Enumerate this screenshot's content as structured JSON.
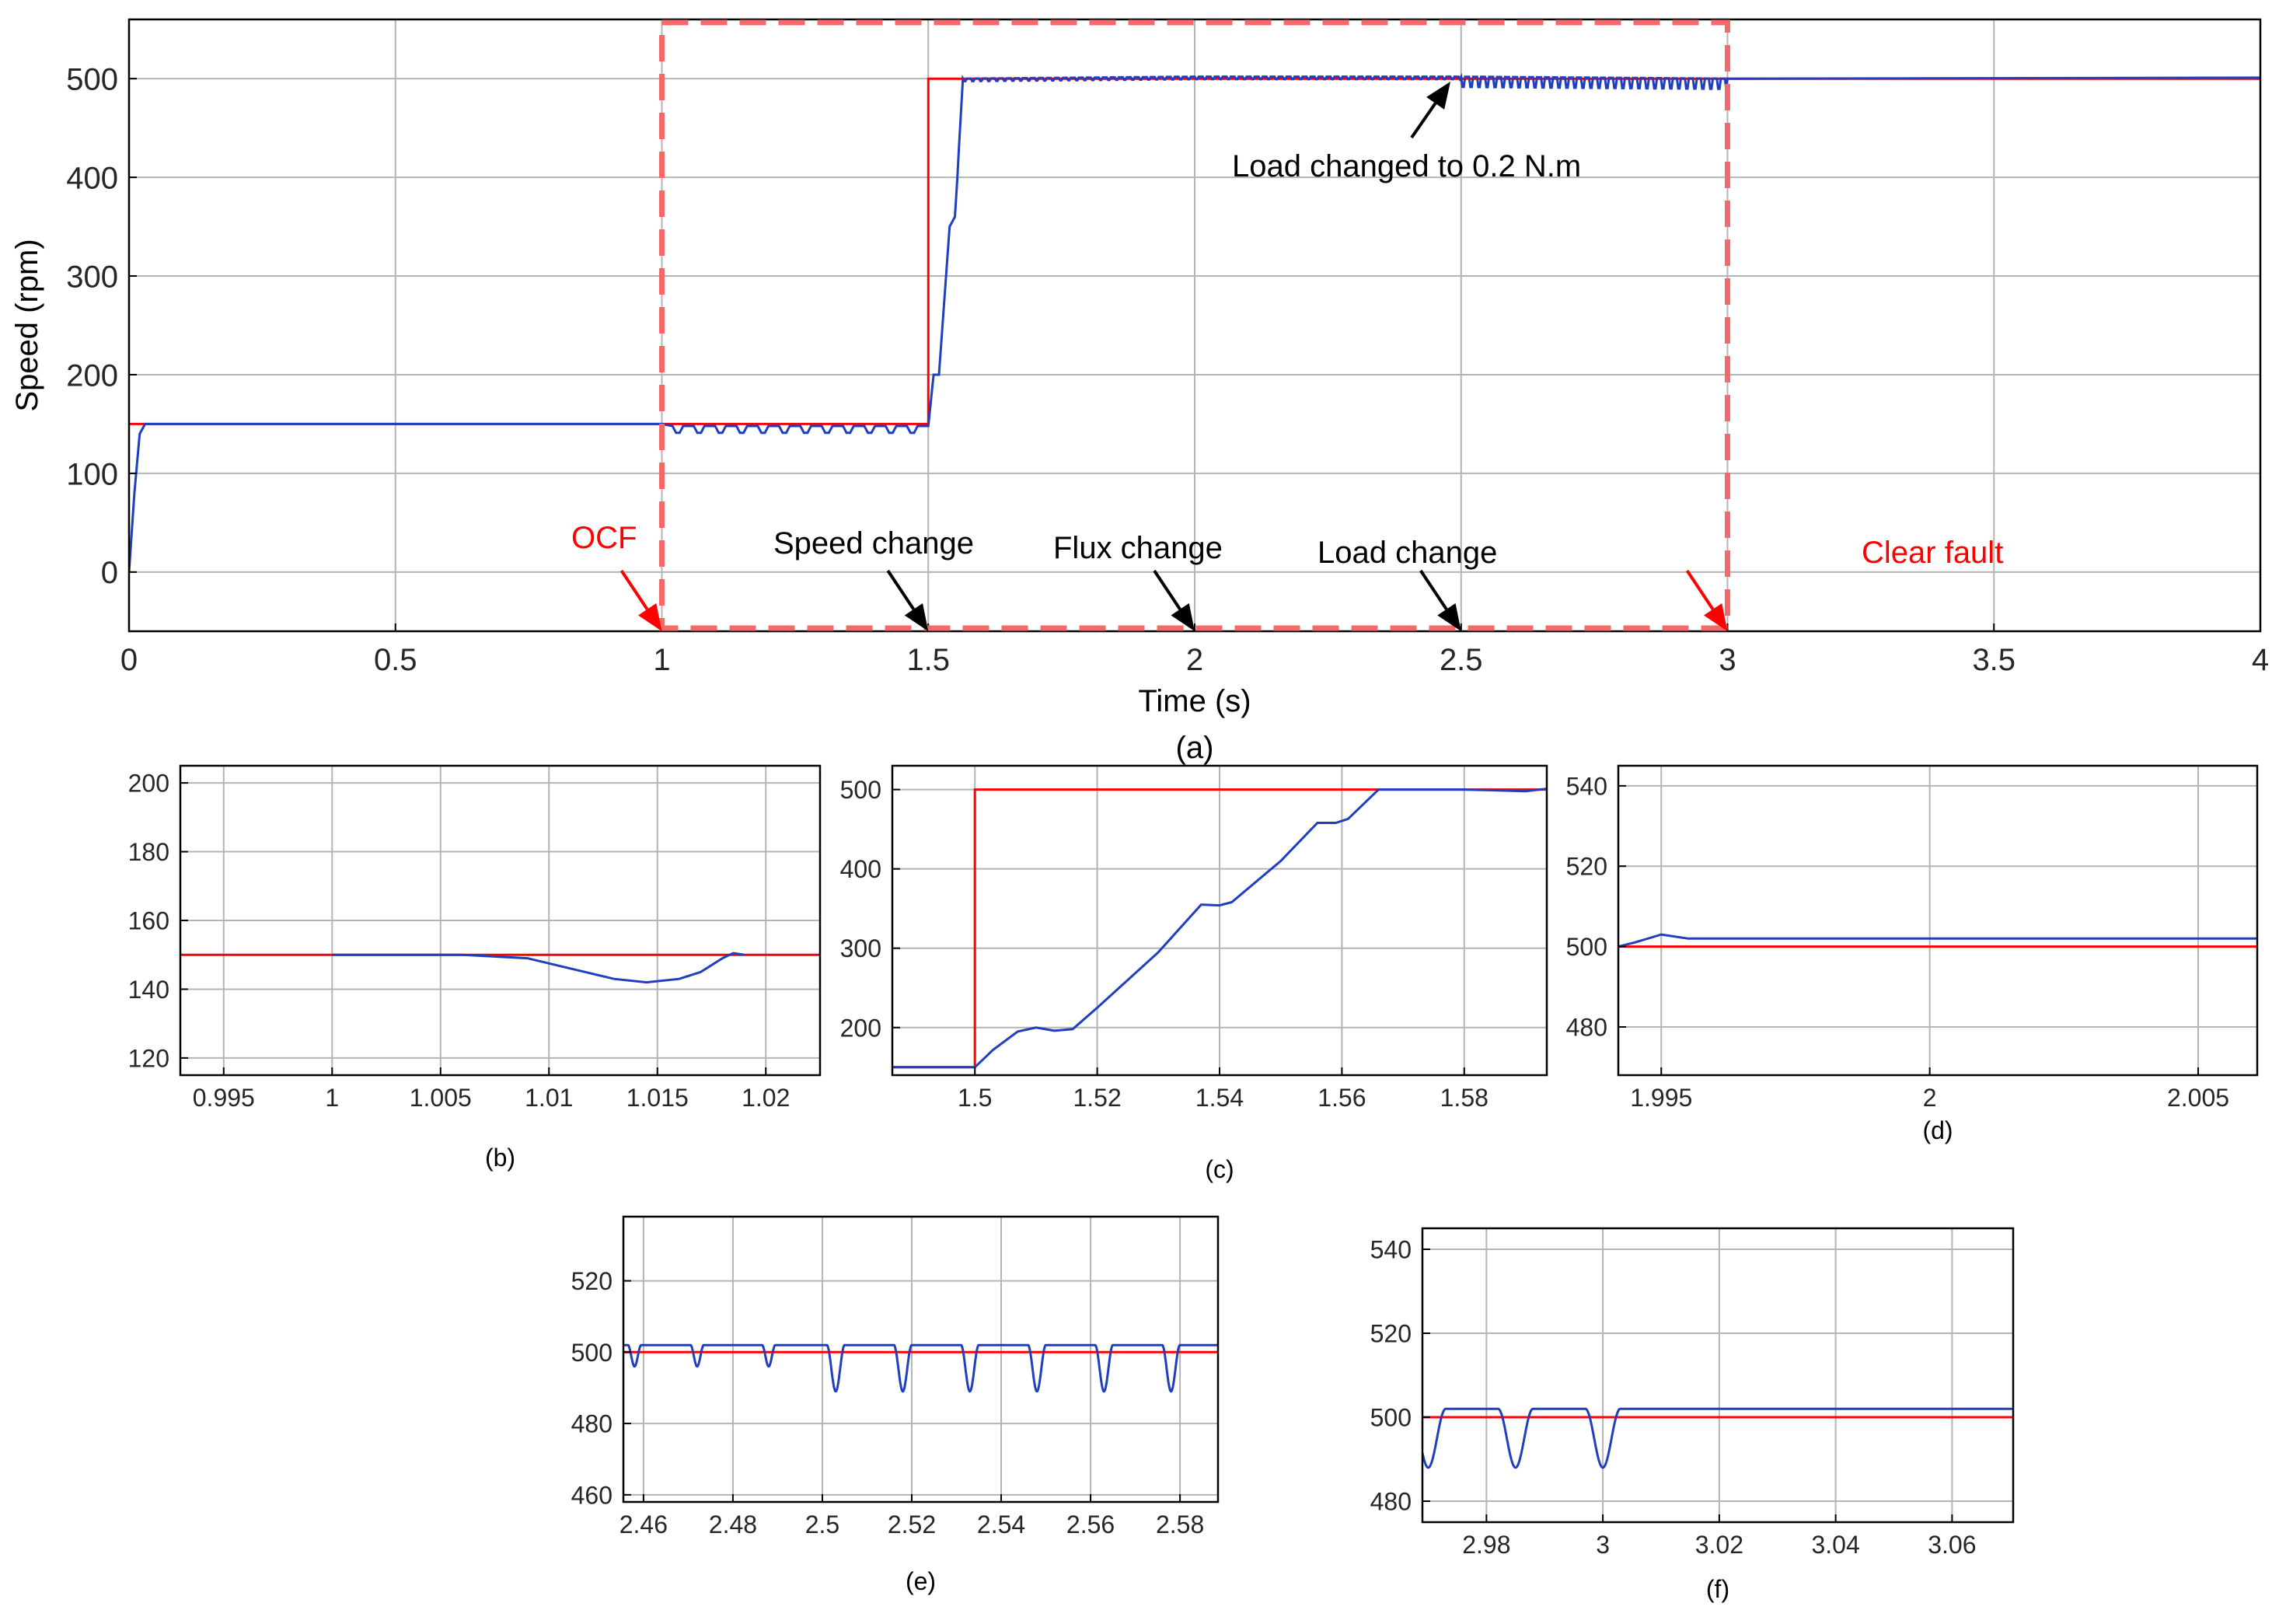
{
  "colors": {
    "reference": "#ff0000",
    "measured": "#1f3fbf",
    "grid": "#b4b4b4",
    "axes": "#000000",
    "fault_box": "#f46a6a",
    "annotation_red": "#ff0000",
    "annotation_black": "#000000"
  },
  "chart_data": [
    {
      "id": "a",
      "type": "line",
      "caption": "(a)",
      "xlabel": "Time (s)",
      "ylabel": "Speed (rpm)",
      "xlim": [
        0,
        4
      ],
      "ylim": [
        -60,
        560
      ],
      "xticks": [
        0,
        0.5,
        1,
        1.5,
        2,
        2.5,
        3,
        3.5,
        4
      ],
      "xtick_labels": [
        "0",
        "0.5",
        "1",
        "1.5",
        "2",
        "2.5",
        "3",
        "3.5",
        "4"
      ],
      "yticks": [
        0,
        100,
        200,
        300,
        400,
        500
      ],
      "ytick_labels": [
        "0",
        "100",
        "200",
        "300",
        "400",
        "500"
      ],
      "grid": true,
      "series": [
        {
          "color": "#ff0000",
          "x": [
            0,
            1.5,
            1.5,
            4
          ],
          "y": [
            150,
            150,
            500,
            500
          ]
        },
        {
          "color": "#1f3fbf",
          "x": [
            0,
            0.01,
            0.02,
            0.03,
            1.0,
            1.02,
            1.5,
            1.51,
            1.52,
            1.54,
            1.55,
            1.565,
            2.0,
            2.5,
            3.0,
            4.0
          ],
          "y": [
            0,
            80,
            140,
            150,
            150,
            148,
            148,
            200,
            200,
            350,
            360,
            500,
            502,
            502,
            500,
            501
          ],
          "oscillations": [
            {
              "x_from": 1.02,
              "x_to": 1.5,
              "period": 0.04,
              "depth": 8
            },
            {
              "x_from": 1.55,
              "x_to": 2.5,
              "period": 0.015,
              "depth": 3
            },
            {
              "x_from": 2.5,
              "x_to": 3.0,
              "period": 0.015,
              "depth": 12
            }
          ]
        }
      ],
      "fault_box": {
        "x_from": 1,
        "x_to": 3
      },
      "annotations": [
        {
          "text": "OCF",
          "color": "#ff0000",
          "arrow_to": [
            1,
            -60
          ]
        },
        {
          "text": "Speed change",
          "color": "#000000",
          "arrow_to": [
            1.5,
            -60
          ]
        },
        {
          "text": "Flux change",
          "color": "#000000",
          "arrow_to": [
            2,
            -60
          ]
        },
        {
          "text": "Load change",
          "color": "#000000",
          "arrow_to": [
            2.5,
            -60
          ]
        },
        {
          "text": "Clear fault",
          "color": "#ff0000",
          "arrow_to": [
            3,
            -60
          ]
        },
        {
          "text": "Load changed to 0.2 N.m",
          "color": "#000000",
          "arrow_to": [
            2.48,
            497
          ]
        }
      ]
    },
    {
      "id": "b",
      "type": "line",
      "caption": "(b)",
      "xlim": [
        0.993,
        1.0225
      ],
      "ylim": [
        115,
        205
      ],
      "xticks": [
        0.995,
        1,
        1.005,
        1.01,
        1.015,
        1.02
      ],
      "xtick_labels": [
        "0.995",
        "1",
        "1.005",
        "1.01",
        "1.015",
        "1.02"
      ],
      "yticks": [
        120,
        140,
        160,
        180,
        200
      ],
      "ytick_labels": [
        "120",
        "140",
        "160",
        "180",
        "200"
      ],
      "grid": true,
      "series": [
        {
          "color": "#ff0000",
          "x": [
            0.993,
            1.0225
          ],
          "y": [
            150,
            150
          ]
        },
        {
          "color": "#1f3fbf",
          "x": [
            1.0,
            1.006,
            1.009,
            1.011,
            1.013,
            1.0145,
            1.016,
            1.017,
            1.018,
            1.0185,
            1.019
          ],
          "y": [
            150,
            150,
            149,
            146,
            143,
            142,
            143,
            145,
            149,
            150.5,
            150
          ]
        }
      ]
    },
    {
      "id": "c",
      "type": "line",
      "caption": "(c)",
      "xlim": [
        1.4865,
        1.5935
      ],
      "ylim": [
        140,
        530
      ],
      "xticks": [
        1.5,
        1.52,
        1.54,
        1.56,
        1.58
      ],
      "xtick_labels": [
        "1.5",
        "1.52",
        "1.54",
        "1.56",
        "1.58"
      ],
      "yticks": [
        200,
        300,
        400,
        500
      ],
      "ytick_labels": [
        "200",
        "300",
        "400",
        "500"
      ],
      "grid": true,
      "series": [
        {
          "color": "#ff0000",
          "x": [
            1.4865,
            1.5,
            1.5,
            1.5935
          ],
          "y": [
            150,
            150,
            500,
            500
          ]
        },
        {
          "color": "#1f3fbf",
          "x": [
            1.4865,
            1.5,
            1.503,
            1.507,
            1.51,
            1.513,
            1.516,
            1.52,
            1.53,
            1.537,
            1.54,
            1.542,
            1.55,
            1.556,
            1.559,
            1.561,
            1.566,
            1.58,
            1.59,
            1.5935
          ],
          "y": [
            150,
            150,
            172,
            195,
            200,
            196,
            198,
            225,
            295,
            355,
            354,
            358,
            410,
            458,
            458,
            463,
            500,
            500,
            498,
            501
          ]
        }
      ]
    },
    {
      "id": "d",
      "type": "line",
      "caption": "(d)",
      "xlim": [
        1.9942,
        2.0061
      ],
      "ylim": [
        468,
        545
      ],
      "xticks": [
        1.995,
        2,
        2.005
      ],
      "xtick_labels": [
        "1.995",
        "2",
        "2.005"
      ],
      "yticks": [
        480,
        500,
        520,
        540
      ],
      "ytick_labels": [
        "480",
        "500",
        "520",
        "540"
      ],
      "grid": true,
      "series": [
        {
          "color": "#ff0000",
          "x": [
            1.9942,
            2.0061
          ],
          "y": [
            500,
            500
          ]
        },
        {
          "color": "#1f3fbf",
          "x": [
            1.9942,
            1.9945,
            1.995,
            1.9955,
            2.0,
            2.0061
          ],
          "y": [
            500,
            501,
            503,
            502,
            502,
            502
          ]
        }
      ]
    },
    {
      "id": "e",
      "type": "line",
      "caption": "(e)",
      "xlim": [
        2.4555,
        2.5885
      ],
      "ylim": [
        458,
        538
      ],
      "xticks": [
        2.46,
        2.48,
        2.5,
        2.52,
        2.54,
        2.56,
        2.58
      ],
      "xtick_labels": [
        "2.46",
        "2.48",
        "2.5",
        "2.52",
        "2.54",
        "2.56",
        "2.58"
      ],
      "yticks": [
        460,
        480,
        500,
        520
      ],
      "ytick_labels": [
        "460",
        "480",
        "500",
        "520"
      ],
      "grid": true,
      "series": [
        {
          "color": "#ff0000",
          "x": [
            2.4555,
            2.5885
          ],
          "y": [
            500,
            500
          ]
        },
        {
          "color": "#1f3fbf",
          "baseline": 502,
          "dips": [
            {
              "x": 2.458,
              "min": 496,
              "width": 0.003
            },
            {
              "x": 2.472,
              "min": 496,
              "width": 0.003
            },
            {
              "x": 2.488,
              "min": 496,
              "width": 0.003
            },
            {
              "x": 2.503,
              "min": 489,
              "width": 0.004
            },
            {
              "x": 2.518,
              "min": 489,
              "width": 0.004
            },
            {
              "x": 2.533,
              "min": 489,
              "width": 0.004
            },
            {
              "x": 2.548,
              "min": 489,
              "width": 0.004
            },
            {
              "x": 2.563,
              "min": 489,
              "width": 0.004
            },
            {
              "x": 2.578,
              "min": 489,
              "width": 0.004
            }
          ]
        }
      ]
    },
    {
      "id": "f",
      "type": "line",
      "caption": "(f)",
      "xlim": [
        2.969,
        3.0705
      ],
      "ylim": [
        475,
        545
      ],
      "xticks": [
        2.98,
        3,
        3.02,
        3.04,
        3.06
      ],
      "xtick_labels": [
        "2.98",
        "3",
        "3.02",
        "3.04",
        "3.06"
      ],
      "yticks": [
        480,
        500,
        520,
        540
      ],
      "ytick_labels": [
        "480",
        "500",
        "520",
        "540"
      ],
      "grid": true,
      "series": [
        {
          "color": "#ff0000",
          "x": [
            2.969,
            3.0705
          ],
          "y": [
            500,
            500
          ]
        },
        {
          "color": "#1f3fbf",
          "baseline": 502,
          "dips": [
            {
              "x": 2.97,
              "min": 488,
              "width": 0.006
            },
            {
              "x": 2.985,
              "min": 488,
              "width": 0.006
            },
            {
              "x": 3.0,
              "min": 488,
              "width": 0.006
            }
          ]
        }
      ]
    }
  ]
}
